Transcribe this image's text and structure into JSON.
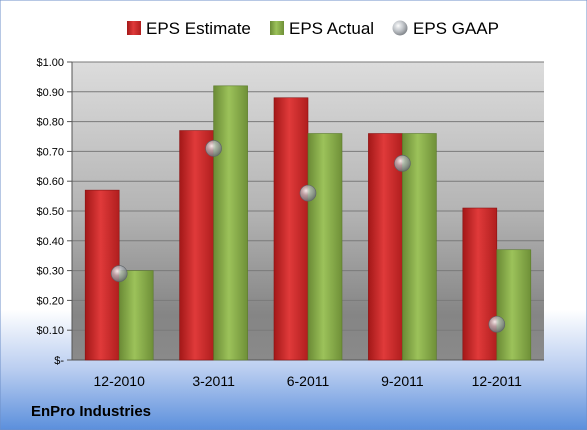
{
  "company": "EnPro Industries",
  "colors": {
    "estimate": "#d42a2a",
    "actual": "#8db04b",
    "gaap": "#9aa0a6"
  },
  "chart_data": {
    "type": "bar",
    "categories": [
      "12-2010",
      "3-2011",
      "6-2011",
      "9-2011",
      "12-2011"
    ],
    "series": [
      {
        "name": "EPS Estimate",
        "kind": "bar",
        "values": [
          0.57,
          0.77,
          0.88,
          0.76,
          0.51
        ]
      },
      {
        "name": "EPS Actual",
        "kind": "bar",
        "values": [
          0.3,
          0.92,
          0.76,
          0.76,
          0.37
        ]
      },
      {
        "name": "EPS GAAP",
        "kind": "marker",
        "values": [
          0.29,
          0.71,
          0.56,
          0.66,
          0.12
        ]
      }
    ],
    "ylim": [
      0,
      1.0
    ],
    "yticks": [
      0,
      0.1,
      0.2,
      0.3,
      0.4,
      0.5,
      0.6,
      0.7,
      0.8,
      0.9,
      1.0
    ],
    "ytick_labels": [
      "$-",
      "$0.10",
      "$0.20",
      "$0.30",
      "$0.40",
      "$0.50",
      "$0.60",
      "$0.70",
      "$0.80",
      "$0.90",
      "$1.00"
    ],
    "grid": true,
    "legend": "top"
  }
}
